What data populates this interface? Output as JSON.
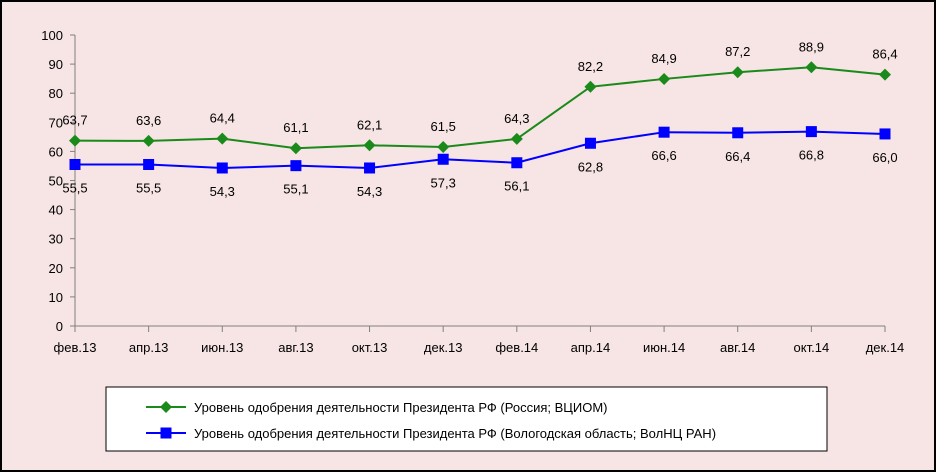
{
  "chart_data": {
    "type": "line",
    "categories": [
      "фев.13",
      "апр.13",
      "июн.13",
      "авг.13",
      "окт.13",
      "дек.13",
      "фев.14",
      "апр.14",
      "июн.14",
      "авг.14",
      "окт.14",
      "дек.14"
    ],
    "ylim": [
      0,
      100
    ],
    "yticks": [
      0,
      10,
      20,
      30,
      40,
      50,
      60,
      70,
      80,
      90,
      100
    ],
    "grid": false,
    "legend_position": "bottom",
    "series": [
      {
        "name": "Уровень одобрения деятельности Президента РФ (Россия; ВЦИОМ)",
        "values": [
          63.7,
          63.6,
          64.4,
          61.1,
          62.1,
          61.5,
          64.3,
          82.2,
          84.9,
          87.2,
          88.9,
          86.4
        ],
        "labels": [
          "63,7",
          "63,6",
          "64,4",
          "61,1",
          "62,1",
          "61,5",
          "64,3",
          "82,2",
          "84,9",
          "87,2",
          "88,9",
          "86,4"
        ],
        "color": "#1a8a1a",
        "marker": "diamond",
        "label_position": "above"
      },
      {
        "name": "Уровень одобрения деятельности Президента РФ (Вологодская область; ВолНЦ РАН)",
        "values": [
          55.5,
          55.5,
          54.3,
          55.1,
          54.3,
          57.3,
          56.1,
          62.8,
          66.6,
          66.4,
          66.8,
          66.0
        ],
        "labels": [
          "55,5",
          "55,5",
          "54,3",
          "55,1",
          "54,3",
          "57,3",
          "56,1",
          "62,8",
          "66,6",
          "66,4",
          "66,8",
          "66,0"
        ],
        "color": "#0000ff",
        "marker": "square",
        "label_position": "below"
      }
    ],
    "background_color": "#f7e4e4",
    "border_color": "#000000"
  }
}
